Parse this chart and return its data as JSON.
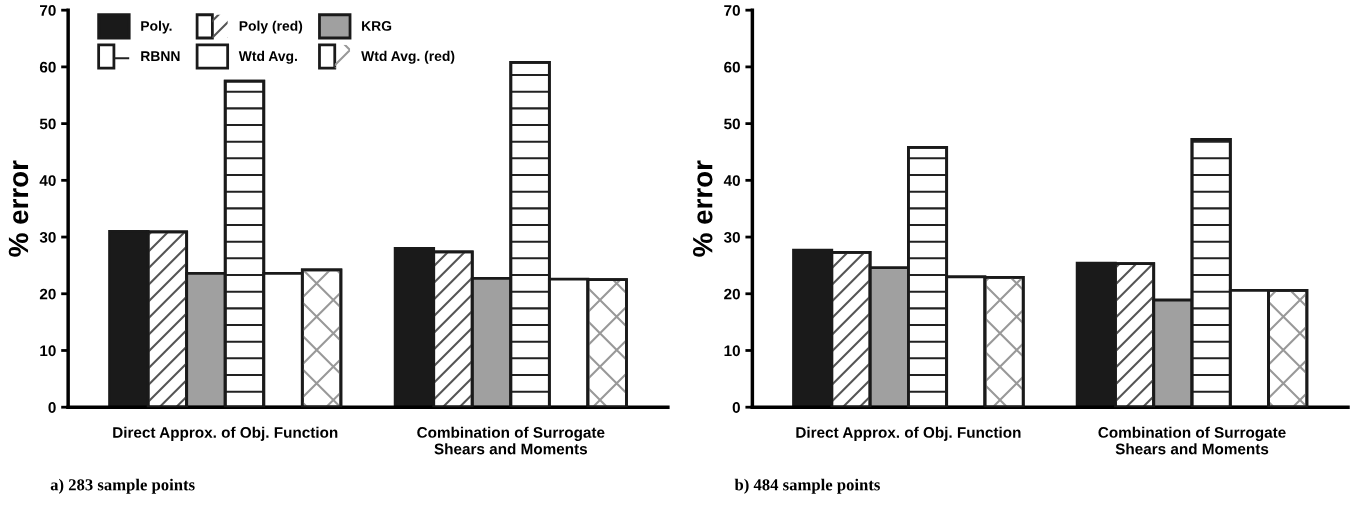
{
  "chart_data": [
    {
      "type": "bar",
      "title": "a) 283 sample points",
      "ylabel": "% error",
      "categories": [
        "Direct Approx. of Obj. Function",
        "Combination of Surrogate\nShears and Moments"
      ],
      "ylim": [
        0,
        70
      ],
      "yticks": [
        0,
        10,
        20,
        30,
        40,
        50,
        60,
        70
      ],
      "grid": false,
      "legend": "top left",
      "series": [
        {
          "name": "Poly.",
          "color": "#1a1a1a",
          "values": [
            31.0,
            28.0
          ]
        },
        {
          "name": "Poly (red)",
          "color": "#ffffff",
          "values": [
            30.9,
            27.4
          ]
        },
        {
          "name": "KRG",
          "color": "#a0a0a0",
          "values": [
            23.6,
            22.7
          ]
        },
        {
          "name": "RBNN",
          "color": "#ffffff",
          "values": [
            57.5,
            60.8
          ]
        },
        {
          "name": "Wtd Avg.",
          "color": "#ffffff",
          "values": [
            23.6,
            22.6
          ]
        },
        {
          "name": "Wtd Avg. (red)",
          "color": "#ffffff",
          "values": [
            24.2,
            22.5
          ]
        }
      ]
    },
    {
      "type": "bar",
      "title": "b) 484 sample points",
      "ylabel": "% error",
      "categories": [
        "Direct Approx. of Obj. Function",
        "Combination of Surrogate\nShears and Moments"
      ],
      "ylim": [
        0,
        70
      ],
      "yticks": [
        0,
        10,
        20,
        30,
        40,
        50,
        60,
        70
      ],
      "grid": false,
      "series": [
        {
          "color": "#1a1a1a",
          "values": [
            27.7,
            25.4
          ]
        },
        {
          "color": "#ffffff",
          "values": [
            27.3,
            25.3
          ]
        },
        {
          "color": "#a0a0a0",
          "values": [
            24.6,
            18.9
          ]
        },
        {
          "color": "#ffffff",
          "values": [
            45.8,
            47.2
          ]
        },
        {
          "color": "#ffffff",
          "values": [
            23.0,
            20.6
          ]
        },
        {
          "color": "#ffffff",
          "values": [
            22.9,
            20.6
          ]
        }
      ]
    }
  ]
}
